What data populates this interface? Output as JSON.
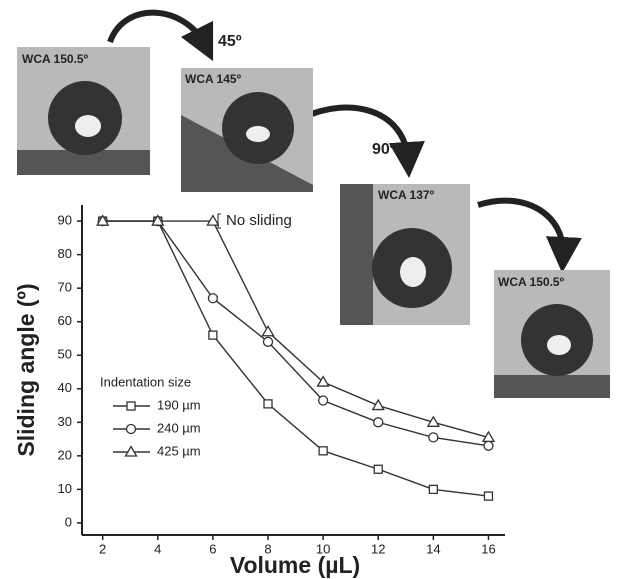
{
  "chart_data": {
    "type": "line",
    "xlabel": "Volume (µL)",
    "ylabel": "Sliding angle (º)",
    "x": [
      2,
      4,
      6,
      8,
      10,
      12,
      14,
      16
    ],
    "series": [
      {
        "name": "190 µm",
        "color": "#333333",
        "marker": "square",
        "values": [
          90,
          90,
          56,
          35.5,
          21.5,
          16,
          10,
          8
        ]
      },
      {
        "name": "240 µm",
        "color": "#333333",
        "marker": "circle",
        "values": [
          90,
          90,
          67,
          54,
          36.5,
          30,
          25.5,
          23
        ]
      },
      {
        "name": "425 µm",
        "color": "#333333",
        "marker": "triangle",
        "values": [
          90,
          90,
          90,
          57,
          42,
          35,
          30,
          25.5
        ]
      }
    ],
    "legend_title": "Indentation size",
    "annotation": "No sliding",
    "xlim": [
      1.25,
      16.6
    ],
    "xticks": [
      2,
      4,
      6,
      8,
      10,
      12,
      14,
      16
    ],
    "ylim": [
      -3.6,
      94.8
    ],
    "yticks": [
      0,
      10,
      20,
      30,
      40,
      50,
      60,
      70,
      80,
      90
    ],
    "insets": [
      "WCA 150.5º",
      "WCA 145º",
      "WCA 137º",
      "WCA 150.5º"
    ],
    "rotations": [
      "45º",
      "90º"
    ]
  }
}
